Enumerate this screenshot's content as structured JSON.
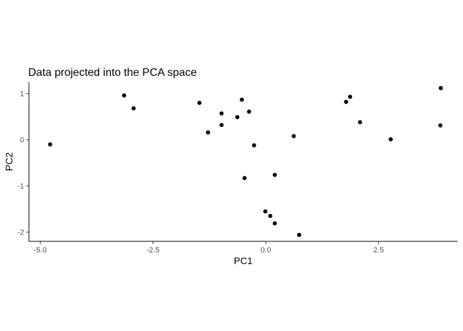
{
  "chart_data": {
    "type": "scatter",
    "title": "Data projected into the PCA space",
    "xlabel": "PC1",
    "ylabel": "PC2",
    "xlim": [
      -5.25,
      4.25
    ],
    "ylim": [
      -2.2,
      1.25
    ],
    "xticks": [
      -5.0,
      -2.5,
      0.0,
      2.5
    ],
    "xtick_labels": [
      "-5.0",
      "-2.5",
      "0.0",
      "2.5"
    ],
    "yticks": [
      -2,
      -1,
      0,
      1
    ],
    "ytick_labels": [
      "-2",
      "-1",
      "0",
      "1"
    ],
    "grid": false,
    "legend": "none",
    "point_color": "#000000",
    "points": [
      {
        "x": -4.78,
        "y": -0.1
      },
      {
        "x": -3.14,
        "y": 0.96
      },
      {
        "x": -2.93,
        "y": 0.68
      },
      {
        "x": -1.47,
        "y": 0.8
      },
      {
        "x": -1.28,
        "y": 0.16
      },
      {
        "x": -0.98,
        "y": 0.57
      },
      {
        "x": -0.98,
        "y": 0.32
      },
      {
        "x": -0.63,
        "y": 0.49
      },
      {
        "x": -0.53,
        "y": 0.87
      },
      {
        "x": -0.37,
        "y": 0.61
      },
      {
        "x": -0.26,
        "y": -0.12
      },
      {
        "x": -0.47,
        "y": -0.83
      },
      {
        "x": 0.2,
        "y": -0.76
      },
      {
        "x": -0.01,
        "y": -1.55
      },
      {
        "x": 0.1,
        "y": -1.65
      },
      {
        "x": 0.2,
        "y": -1.81
      },
      {
        "x": 0.74,
        "y": -2.06
      },
      {
        "x": 0.62,
        "y": 0.08
      },
      {
        "x": 1.78,
        "y": 0.82
      },
      {
        "x": 1.87,
        "y": 0.93
      },
      {
        "x": 2.09,
        "y": 0.38
      },
      {
        "x": 2.77,
        "y": 0.01
      },
      {
        "x": 3.88,
        "y": 1.12
      },
      {
        "x": 3.87,
        "y": 0.31
      }
    ]
  }
}
